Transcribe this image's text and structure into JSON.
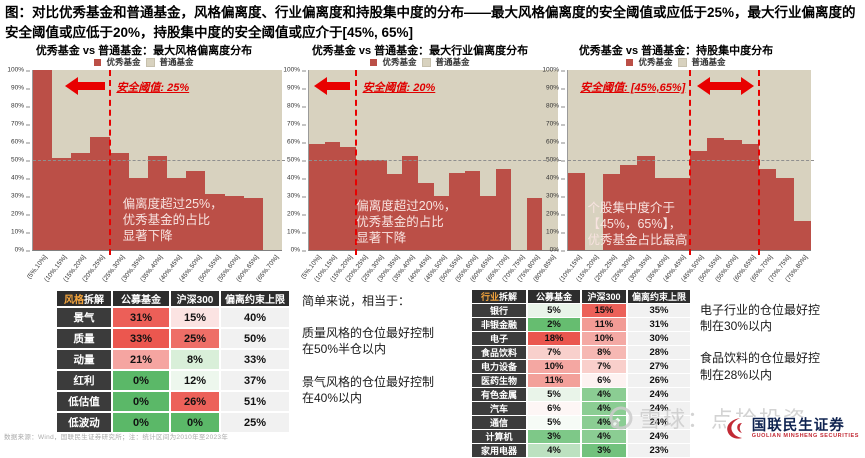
{
  "page_title": "图：对比优秀基金和普通基金，风格偏离度、行业偏离度和持股集中度的分布——最大风格偏离度的安全阈值或应低于25%，最大行业偏离度的安全阈值或应低于20%，持股集中度的安全阈值或应介于[45%, 65%]",
  "legend": {
    "excellent": "优秀基金",
    "ordinary": "普通基金"
  },
  "colors": {
    "excellent_bar": "#bb4f47",
    "ordinary_bar": "#d8d2bf",
    "threshold_red": "#e80000",
    "header_accent": "#f2a33c"
  },
  "y_ticks": [
    "100%",
    "90%",
    "80%",
    "70%",
    "60%",
    "50%",
    "40%",
    "30%",
    "20%",
    "10%",
    "0%"
  ],
  "chart_data": [
    {
      "type": "bar",
      "title": "优秀基金 vs 普通基金：最大风格偏离度分布",
      "stacking": "percent-100",
      "series_names": [
        "优秀基金",
        "普通基金"
      ],
      "categories": [
        "(5%,10%]",
        "(10%,15%]",
        "(15%,20%]",
        "(20%,25%]",
        "(25%,30%]",
        "(30%,35%]",
        "(35%,40%]",
        "(40%,45%]",
        "(45%,50%]",
        "(50%,55%]",
        "(55%,60%]",
        "(60%,65%]",
        "(65%,70%]"
      ],
      "excellent_pct": [
        100,
        51,
        54,
        63,
        54,
        40,
        52,
        40,
        44,
        31,
        30,
        29,
        0
      ],
      "ylim": [
        0,
        100
      ],
      "gridline_pct": 50,
      "threshold_label": "安全阈值: 25%",
      "threshold_fractions": [
        0.3077
      ],
      "annotation": [
        "偏离度超过25%，",
        "优秀基金的占比",
        "显著下降"
      ]
    },
    {
      "type": "bar",
      "title": "优秀基金 vs 普通基金：最大行业偏离度分布",
      "stacking": "percent-100",
      "series_names": [
        "优秀基金",
        "普通基金"
      ],
      "categories": [
        "(5%,10%]",
        "(10%,15%]",
        "(15%,20%]",
        "(20%,25%]",
        "(25%,30%]",
        "(30%,35%]",
        "(35%,40%]",
        "(40%,45%]",
        "(45%,50%]",
        "(50%,55%]",
        "(55%,60%]",
        "(60%,65%]",
        "(65%,70%]",
        "(70%,75%]",
        "(75%,80%]",
        "(80%,85%]"
      ],
      "excellent_pct": [
        59,
        60,
        57,
        50,
        50,
        42,
        52,
        37,
        30,
        43,
        44,
        30,
        45,
        0,
        29,
        0
      ],
      "ylim": [
        0,
        100
      ],
      "gridline_pct": 50,
      "threshold_label": "安全阈值: 20%",
      "threshold_fractions": [
        0.1875
      ],
      "annotation": [
        "偏离度超过20%，",
        "优秀基金的占比",
        "显著下降"
      ]
    },
    {
      "type": "bar",
      "title": "优秀基金 vs 普通基金：持股集中度分布",
      "stacking": "percent-100",
      "series_names": [
        "优秀基金",
        "普通基金"
      ],
      "categories": [
        "(10%,15%]",
        "(15%,20%]",
        "(20%,25%]",
        "(25%,30%]",
        "(30%,35%]",
        "(35%,40%]",
        "(40%,45%]",
        "(45%,50%]",
        "(50%,55%]",
        "(55%,60%]",
        "(60%,65%]",
        "(65%,70%]",
        "(70%,75%]",
        "(75%,80%]"
      ],
      "excellent_pct": [
        43,
        0,
        42,
        47,
        52,
        40,
        40,
        55,
        62,
        61,
        59,
        45,
        40,
        16
      ],
      "ylim": [
        0,
        100
      ],
      "gridline_pct": 50,
      "threshold_label": "安全阈值: [45%,65%]",
      "threshold_fractions": [
        0.5,
        0.7857
      ],
      "annotation": [
        "个股集中度介于",
        "【45%，65%】，",
        "优秀基金占比最高"
      ]
    }
  ],
  "tables": {
    "style": {
      "header": {
        "accent": "风格",
        "rest": "拆解",
        "cols": [
          "公募基金",
          "沪深300",
          "偏离约束上限"
        ]
      },
      "rows": [
        {
          "name": "景气",
          "fund": "31%",
          "fund_bg": "#ec5f58",
          "bench": "15%",
          "bench_bg": "#fbe3e2",
          "cap": "40%"
        },
        {
          "name": "质量",
          "fund": "33%",
          "fund_bg": "#eb574f",
          "bench": "25%",
          "bench_bg": "#ee6e67",
          "cap": "50%"
        },
        {
          "name": "动量",
          "fund": "21%",
          "fund_bg": "#f5a5a1",
          "bench": "8%",
          "bench_bg": "#d9efd9",
          "cap": "33%"
        },
        {
          "name": "红利",
          "fund": "0%",
          "fund_bg": "#5bb868",
          "bench": "12%",
          "bench_bg": "#edf7ed",
          "cap": "37%"
        },
        {
          "name": "低估值",
          "fund": "0%",
          "fund_bg": "#5bb868",
          "bench": "26%",
          "bench_bg": "#ec615a",
          "cap": "51%"
        },
        {
          "name": "低波动",
          "fund": "0%",
          "fund_bg": "#5bb868",
          "bench": "0%",
          "bench_bg": "#5bb868",
          "cap": "25%"
        }
      ]
    },
    "industry": {
      "header": {
        "accent": "行业",
        "rest": "拆解",
        "cols": [
          "公募基金",
          "沪深300",
          "偏离约束上限"
        ]
      },
      "rows": [
        {
          "name": "银行",
          "fund": "5%",
          "fund_bg": "#e9f4e9",
          "bench": "15%",
          "bench_bg": "#ec6159",
          "cap": "35%"
        },
        {
          "name": "非银金融",
          "fund": "2%",
          "fund_bg": "#66bd70",
          "bench": "11%",
          "bench_bg": "#f29b95",
          "cap": "31%"
        },
        {
          "name": "电子",
          "fund": "18%",
          "fund_bg": "#ea564e",
          "bench": "10%",
          "bench_bg": "#f4a9a4",
          "cap": "30%"
        },
        {
          "name": "食品饮料",
          "fund": "7%",
          "fund_bg": "#f8d0cc",
          "bench": "8%",
          "bench_bg": "#f6b8b3",
          "cap": "28%"
        },
        {
          "name": "电力设备",
          "fund": "10%",
          "fund_bg": "#f4a7a2",
          "bench": "7%",
          "bench_bg": "#f9cfcb",
          "cap": "27%"
        },
        {
          "name": "医药生物",
          "fund": "11%",
          "fund_bg": "#f3a09a",
          "bench": "6%",
          "bench_bg": "#fdf2f1",
          "cap": "26%"
        },
        {
          "name": "有色金属",
          "fund": "5%",
          "fund_bg": "#e9f4e9",
          "bench": "4%",
          "bench_bg": "#8bcd93",
          "cap": "24%"
        },
        {
          "name": "汽车",
          "fund": "6%",
          "fund_bg": "#fdf6f5",
          "bench": "4%",
          "bench_bg": "#8bcd93",
          "cap": "24%"
        },
        {
          "name": "通信",
          "fund": "5%",
          "fund_bg": "#f6fbf6",
          "bench": "4%",
          "bench_bg": "#8bcd93",
          "cap": "24%"
        },
        {
          "name": "计算机",
          "fund": "3%",
          "fund_bg": "#7ec888",
          "bench": "4%",
          "bench_bg": "#8bcd93",
          "cap": "24%"
        },
        {
          "name": "家用电器",
          "fund": "4%",
          "fund_bg": "#bce1c0",
          "bench": "3%",
          "bench_bg": "#72c27d",
          "cap": "23%"
        }
      ]
    }
  },
  "notes": {
    "middle": [
      "简单来说，相当于：",
      "质量风格的仓位最好控制在50%半仓以内",
      "景气风格的仓位最好控制在40%以内"
    ],
    "right": [
      "电子行业的仓位最好控制在30%以内",
      "食品饮料的仓位最好控制在28%以内"
    ]
  },
  "footer": {
    "source": "数据来源：Wind，国联民生证券研究所；注：统计区间为2010年至2023年",
    "watermark": "雪球：点拾投资",
    "broker_cn": "国联民生证券",
    "broker_en": "GUOLIAN MINSHENG SECURITIES"
  }
}
